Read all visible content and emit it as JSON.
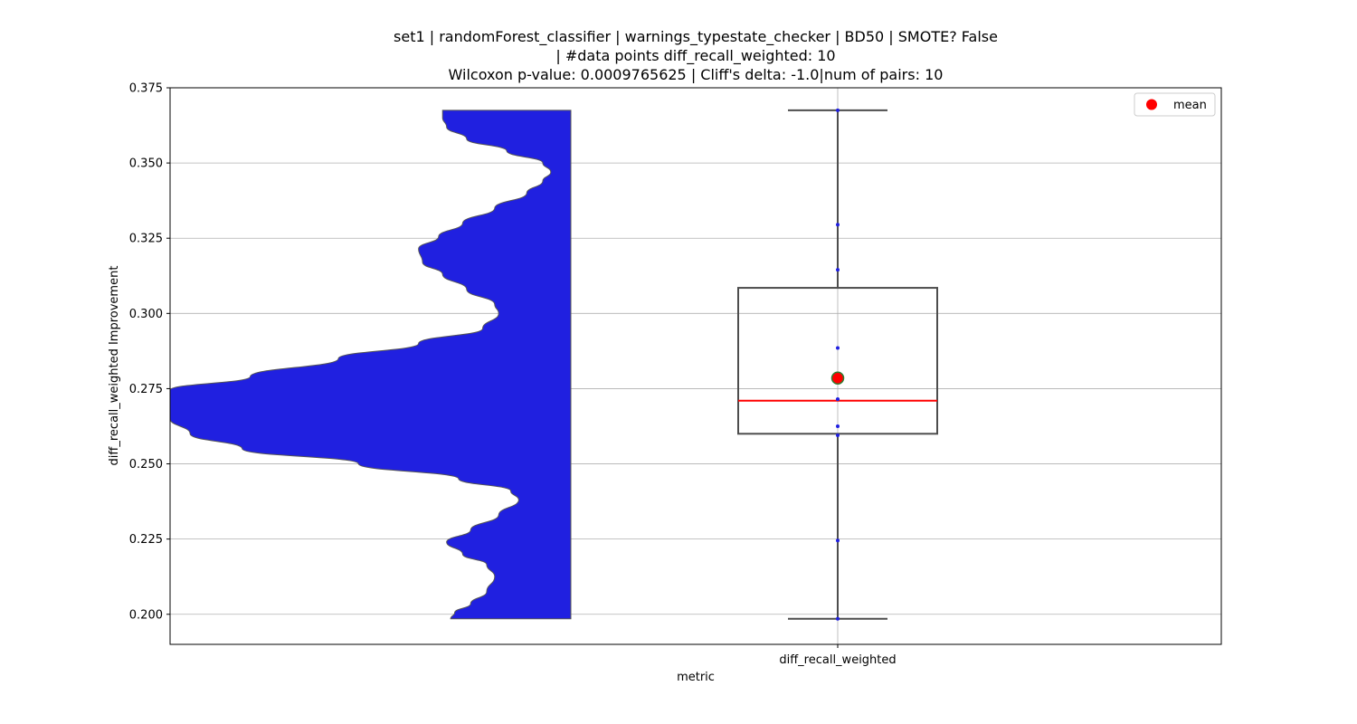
{
  "chart_data": {
    "type": "violin+box",
    "title_lines": [
      "set1 | randomForest_classifier | warnings_typestate_checker | BD50 | SMOTE? False",
      "| #data points diff_recall_weighted: 10",
      "Wilcoxon p-value: 0.0009765625 | Cliff's delta: -1.0|num of pairs: 10"
    ],
    "xlabel": "metric",
    "ylabel": "diff_recall_weighted Improvement",
    "categories": [
      "diff_recall_weighted"
    ],
    "ylim": [
      0.19,
      0.375
    ],
    "yticks": [
      0.2,
      0.225,
      0.25,
      0.275,
      0.3,
      0.325,
      0.35,
      0.375
    ],
    "ytick_labels": [
      "0.200",
      "0.225",
      "0.250",
      "0.275",
      "0.300",
      "0.325",
      "0.350",
      "0.375"
    ],
    "grid": true,
    "legend": {
      "position": "top-right",
      "entries": [
        {
          "label": "mean",
          "color": "#ff0000"
        }
      ]
    },
    "points": [
      0.1985,
      0.2245,
      0.2595,
      0.2625,
      0.2715,
      0.2715,
      0.2885,
      0.3145,
      0.3295,
      0.3675
    ],
    "box": {
      "min": 0.1985,
      "q1": 0.26,
      "median": 0.271,
      "q3": 0.3085,
      "max": 0.3675
    },
    "mean": 0.2785,
    "violin": {
      "side": "left",
      "color": "#2020e0",
      "edge_color": "#555555",
      "y": [
        0.1985,
        0.2005,
        0.2035,
        0.2075,
        0.2125,
        0.2165,
        0.22,
        0.224,
        0.228,
        0.233,
        0.238,
        0.241,
        0.245,
        0.25,
        0.255,
        0.26,
        0.265,
        0.27,
        0.2745,
        0.279,
        0.285,
        0.29,
        0.295,
        0.3,
        0.303,
        0.308,
        0.313,
        0.317,
        0.3215,
        0.3255,
        0.33,
        0.335,
        0.34,
        0.344,
        0.347,
        0.35,
        0.354,
        0.358,
        0.362,
        0.365,
        0.3675
      ],
      "density": [
        0.3,
        0.29,
        0.25,
        0.21,
        0.19,
        0.21,
        0.27,
        0.31,
        0.25,
        0.18,
        0.13,
        0.15,
        0.28,
        0.53,
        0.82,
        0.95,
        1.0,
        1.0,
        1.0,
        0.8,
        0.58,
        0.38,
        0.22,
        0.18,
        0.19,
        0.26,
        0.32,
        0.37,
        0.38,
        0.33,
        0.27,
        0.19,
        0.11,
        0.07,
        0.05,
        0.07,
        0.16,
        0.26,
        0.31,
        0.32,
        0.32
      ]
    }
  }
}
